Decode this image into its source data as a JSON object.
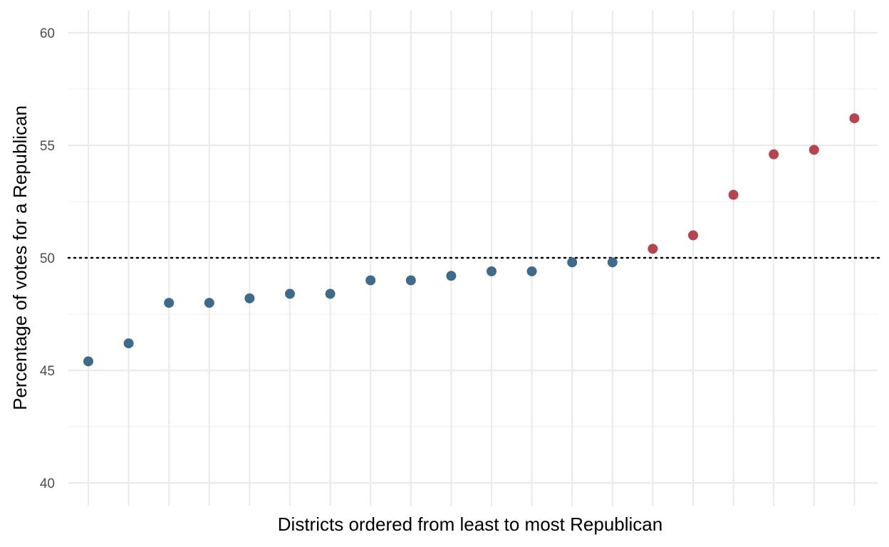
{
  "chart_data": {
    "type": "scatter",
    "title": "",
    "xlabel": "Districts ordered from least to most Republican",
    "ylabel": "Percentage of votes for a Republican",
    "ylim": [
      39.5,
      60.5
    ],
    "y_major_ticks": [
      40,
      45,
      50,
      55,
      60
    ],
    "y_minor_ticks": [
      42.5,
      47.5,
      52.5,
      57.5
    ],
    "x_tick_labels_shown": false,
    "grid": true,
    "reference_line": {
      "y": 50,
      "style": "dotted",
      "color": "#000000"
    },
    "colors": {
      "democrat_won": "#3f6a8a",
      "republican_won": "#b5464f"
    },
    "x": [
      1,
      2,
      3,
      4,
      5,
      6,
      7,
      8,
      9,
      10,
      11,
      12,
      13,
      14,
      15,
      16,
      17,
      18,
      19,
      20
    ],
    "values": [
      45.4,
      46.2,
      48.0,
      48.0,
      48.2,
      48.4,
      48.4,
      49.0,
      49.0,
      49.2,
      49.4,
      49.4,
      49.8,
      49.8,
      50.4,
      51.0,
      52.8,
      54.6,
      54.8,
      56.2
    ]
  }
}
